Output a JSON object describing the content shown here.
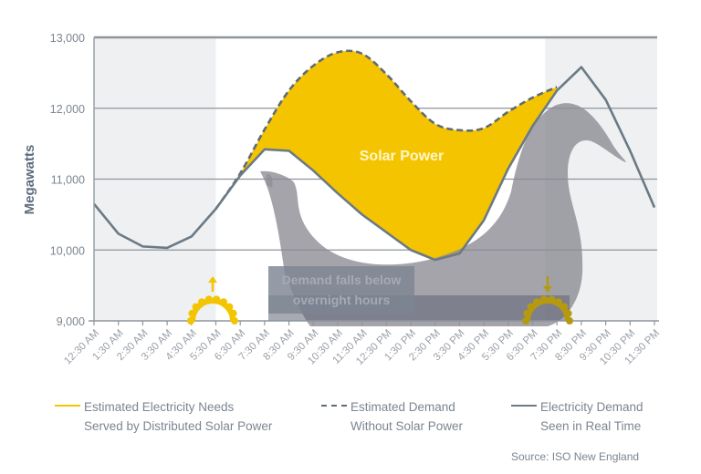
{
  "chart_data": {
    "type": "line",
    "title": "",
    "xlabel": "",
    "ylabel": "Megawatts",
    "ylim": [
      9000,
      13000
    ],
    "yticks": [
      9000,
      10000,
      11000,
      12000,
      13000
    ],
    "ytick_labels": [
      "9,000",
      "10,000",
      "11,000",
      "12,000",
      "13,000"
    ],
    "grid": true,
    "categories": [
      "12:30 AM",
      "1:30 AM",
      "2:30 AM",
      "3:30 AM",
      "4:30 AM",
      "5:30 AM",
      "6:30 AM",
      "7:30 AM",
      "8:30 AM",
      "9:30 AM",
      "10:30 AM",
      "11:30 AM",
      "12:30 PM",
      "1:30 PM",
      "2:30 PM",
      "3:30 PM",
      "4:30 PM",
      "5:30 PM",
      "6:30 PM",
      "7:30 PM",
      "8:30 PM",
      "9:30 PM",
      "10:30 PM",
      "11:30 PM"
    ],
    "series": [
      {
        "name": "Electricity Demand Seen in Real Time",
        "style": "solid",
        "color": "#6b7a84",
        "values": [
          10650,
          10230,
          10050,
          10030,
          10190,
          10580,
          11050,
          11420,
          11400,
          11120,
          10800,
          10500,
          10250,
          10000,
          9860,
          9950,
          10420,
          11150,
          11750,
          12250,
          12580,
          12120,
          11400,
          10600
        ]
      },
      {
        "name": "Estimated Demand Without Solar Power",
        "style": "dashed",
        "color": "#6b7a84",
        "values": [
          null,
          null,
          null,
          null,
          null,
          10580,
          11080,
          11700,
          12250,
          12600,
          12790,
          12770,
          12480,
          12100,
          11780,
          11690,
          11720,
          11950,
          12150,
          12300,
          null,
          null,
          null,
          null
        ]
      },
      {
        "name": "Estimated Electricity Needs Served by Distributed Solar Power",
        "style": "area",
        "color": "#f5c400",
        "note": "Area between Estimated Demand Without Solar Power and Electricity Demand Seen in Real Time"
      }
    ],
    "annotations": [
      {
        "text": "Solar Power",
        "x": "1:30 PM",
        "y": 11350
      },
      {
        "text": "Demand falls below overnight hours",
        "x": "11:30 AM",
        "y": 9500
      },
      {
        "text": "sunrise-icon",
        "x": "5:30 AM"
      },
      {
        "text": "sunset-icon",
        "x": "7:30 PM"
      }
    ],
    "shaded_regions": [
      {
        "from": "12:30 AM",
        "to": "5:30 AM",
        "label": "night"
      },
      {
        "from": "7:30 PM",
        "to": "11:30 PM",
        "label": "night"
      }
    ],
    "legend_position": "bottom",
    "source": "Source: ISO New England"
  },
  "labels": {
    "ylabel": "Megawatts",
    "solar_label": "Solar Power",
    "callout_line1": "Demand falls below",
    "callout_line2": "overnight hours"
  },
  "legend": [
    {
      "line1": "Estimated Electricity Needs",
      "line2": "Served by Distributed Solar Power",
      "color": "#f5c400",
      "style": "solid"
    },
    {
      "line1": "Estimated Demand",
      "line2": "Without Solar Power",
      "color": "#5f6b75",
      "style": "dashed"
    },
    {
      "line1": "Electricity Demand",
      "line2": "Seen in Real Time",
      "color": "#6b7a84",
      "style": "solid"
    }
  ],
  "source": "Source: ISO New England",
  "colors": {
    "solar": "#f5c400",
    "line": "#6b7a84",
    "grid": "#8e959b",
    "night": "#eef0f2",
    "duck": "#8a8a92",
    "text": "#7c8590"
  }
}
